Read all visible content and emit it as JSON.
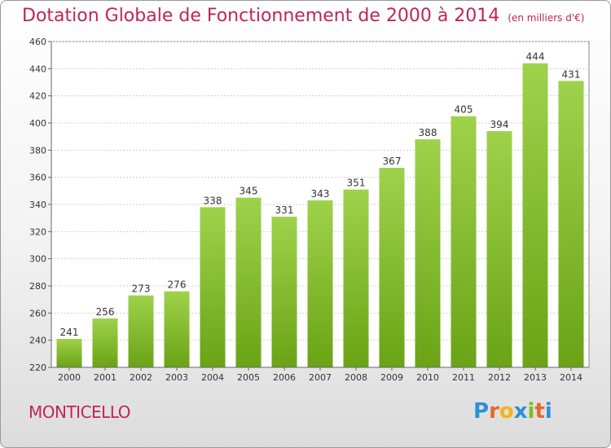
{
  "title": "Dotation Globale de Fonctionnement de 2000 à 2014",
  "subtitle": "(en milliers d'€)",
  "place": "MONTICELLO",
  "logo": {
    "letters": [
      "P",
      "r",
      "o",
      "x",
      "i",
      "t",
      "i"
    ],
    "colors": [
      "#2d8fd5",
      "#e8682a",
      "#f2b31c",
      "#2d8fd5",
      "#7bbf2a",
      "#e8682a",
      "#2d8fd5"
    ]
  },
  "colors": {
    "bar_light": "#9fd24b",
    "bar_dark": "#6aa316",
    "accent": "#c0245b"
  },
  "chart_data": {
    "type": "bar",
    "categories": [
      "2000",
      "2001",
      "2002",
      "2003",
      "2004",
      "2005",
      "2006",
      "2007",
      "2008",
      "2009",
      "2010",
      "2011",
      "2012",
      "2013",
      "2014"
    ],
    "values": [
      241,
      256,
      273,
      276,
      338,
      345,
      331,
      343,
      351,
      367,
      388,
      405,
      394,
      444,
      431
    ],
    "ylim": [
      220,
      460
    ],
    "yticks": [
      220,
      240,
      260,
      280,
      300,
      320,
      340,
      360,
      380,
      400,
      420,
      440,
      460
    ],
    "grid": true
  }
}
